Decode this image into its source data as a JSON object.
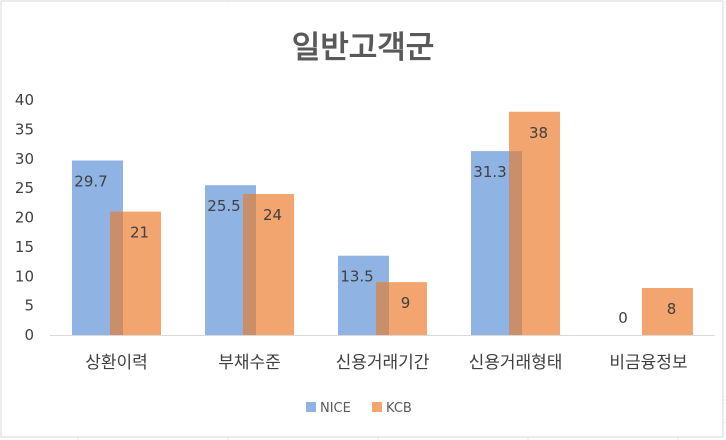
{
  "chart_data": {
    "type": "bar",
    "title": "일반고객군",
    "categories": [
      "상환이력",
      "부채수준",
      "신용거래기간",
      "신용거래형태",
      "비금융정보"
    ],
    "series": [
      {
        "name": "NICE",
        "values": [
          29.7,
          25.5,
          13.5,
          31.3,
          0
        ],
        "labels": [
          "29.7",
          "25.5",
          "13.5",
          "31.3",
          "0"
        ],
        "color": "#8FB4E3"
      },
      {
        "name": "KCB",
        "values": [
          21,
          24,
          9,
          38,
          8
        ],
        "labels": [
          "21",
          "24",
          "9",
          "38",
          "8"
        ],
        "color": "#F2A56F"
      }
    ],
    "yticks": [
      "0",
      "5",
      "10",
      "15",
      "20",
      "25",
      "30",
      "35",
      "40"
    ],
    "ylim": [
      0,
      40
    ],
    "xlabel": "",
    "ylabel": "",
    "grid": false,
    "legend_position": "bottom",
    "colors": {
      "title": "#595959",
      "text": "#404040",
      "axis": "#D9D9D9",
      "border": "#D9D9D9",
      "sheet_grid": "#E6E6E6",
      "overlap": "#C98F6B"
    }
  }
}
